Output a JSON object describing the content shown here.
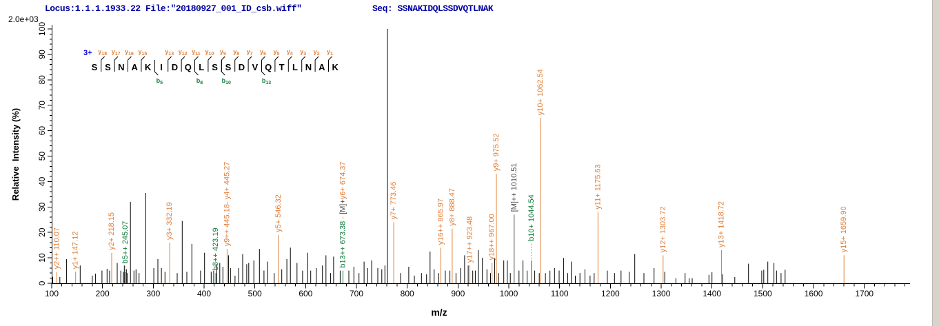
{
  "header": {
    "locus_file": "Locus:1.1.1.1933.22 File:\"20180927_001_ID_csb.wiff\"",
    "seq_label": "Seq: SSNAKIDQLSSDVQTLNAK",
    "intensity_scale": "2.0e+03"
  },
  "chart_data": {
    "type": "bar",
    "subtype": "centroided-ms2-peptide-fragmentation-spectrum",
    "title": "",
    "xlabel": "m/z",
    "ylabel": "Relative  Intensity (%)",
    "xlim": [
      100,
      1790
    ],
    "ylim": [
      0,
      100
    ],
    "x_major_tick_step": 100,
    "x_minor_tick_step": 20,
    "x_last_major_label": 1700,
    "y_major_tick_step": 10,
    "y_minor_tick_step": 2,
    "grid": "off",
    "legend": "none",
    "colors": {
      "y_ion": "#E0813C",
      "b_ion": "#117B3C",
      "precursor": "#4D4D4D",
      "peak": "#000000",
      "axis": "#000000",
      "charge": "#0000E0",
      "header_text": "#0000A0",
      "leader": "#9a9a9a"
    },
    "peptide": {
      "sequence": "SSNAKIDQLSSDVQTLNAK",
      "charge_label": "3+",
      "y_fragments": [
        [
          18,
          1
        ],
        [
          17,
          2
        ],
        [
          16,
          3
        ],
        [
          15,
          4
        ],
        [
          13,
          6
        ],
        [
          12,
          7
        ],
        [
          11,
          8
        ],
        [
          10,
          9
        ],
        [
          9,
          10
        ],
        [
          8,
          11
        ],
        [
          7,
          12
        ],
        [
          6,
          13
        ],
        [
          5,
          14
        ],
        [
          4,
          15
        ],
        [
          3,
          16
        ],
        [
          2,
          17
        ],
        [
          1,
          18
        ]
      ],
      "b_fragments": [
        [
          5,
          5
        ],
        [
          8,
          8
        ],
        [
          10,
          10
        ],
        [
          13,
          13
        ]
      ]
    },
    "labeled_peaks": [
      {
        "label": "y2++ 110.07",
        "mz": 110.07,
        "intensity": 4.5,
        "type": "y"
      },
      {
        "label": "y1+ 147.12",
        "mz": 147.12,
        "intensity": 4.5,
        "type": "y"
      },
      {
        "label": "y2+ 218.15",
        "mz": 218.15,
        "intensity": 12,
        "type": "y"
      },
      {
        "label": "b5++ 245.07",
        "mz": 245.07,
        "intensity": 4.5,
        "type": "b",
        "leader": 8
      },
      {
        "label": "y3+ 332.19",
        "mz": 332.19,
        "intensity": 16,
        "type": "y"
      },
      {
        "label": "b8++ 423.19",
        "mz": 423.19,
        "intensity": 4,
        "type": "b"
      },
      {
        "label": "y9++ 445.18- y4+ 445.27",
        "mz": 445.27,
        "intensity": 13.5,
        "type": "y"
      },
      {
        "label": "y5+ 546.32",
        "mz": 546.32,
        "intensity": 19,
        "type": "y"
      },
      {
        "label": "b13++ 673.38 - [M]+ y6+ 674.37",
        "mz": 673.38,
        "intensity": 5,
        "type": "b",
        "parts": [
          {
            "text": "b13++ 673.38",
            "type": "b"
          },
          {
            "text": " - ",
            "type": "y"
          },
          {
            "text": "[M]+",
            "type": "M"
          },
          {
            "text": "y6+ 674.37",
            "type": "y"
          }
        ]
      },
      {
        "label": "y7+ 773.46",
        "mz": 773.46,
        "intensity": 24,
        "type": "y"
      },
      {
        "label": "y16++ 865.97",
        "mz": 865.97,
        "intensity": 14,
        "type": "y"
      },
      {
        "label": "y8+ 888.47",
        "mz": 888.47,
        "intensity": 21.5,
        "type": "y"
      },
      {
        "label": "y17++ 923.48",
        "mz": 923.48,
        "intensity": 7,
        "type": "y"
      },
      {
        "label": "y18++ 967.00",
        "mz": 967.0,
        "intensity": 8,
        "type": "y"
      },
      {
        "label": "y9+ 975.52",
        "mz": 975.52,
        "intensity": 43,
        "type": "y"
      },
      {
        "label": "[M]++ 1010.51",
        "mz": 1010.51,
        "intensity": 27,
        "type": "M"
      },
      {
        "label": "b10+ 1044.54",
        "mz": 1044.54,
        "intensity": 9,
        "type": "b",
        "leader": 24
      },
      {
        "label": "y10+ 1062.54",
        "mz": 1062.54,
        "intensity": 65,
        "type": "y"
      },
      {
        "label": "y11+ 1175.63",
        "mz": 1175.63,
        "intensity": 28,
        "type": "y"
      },
      {
        "label": "y12+ 1303.72",
        "mz": 1303.72,
        "intensity": 11,
        "type": "y"
      },
      {
        "label": "y13+ 1418.72",
        "mz": 1418.72,
        "intensity": 13,
        "type": "y"
      },
      {
        "label": "y15+ 1659.90",
        "mz": 1659.9,
        "intensity": 11,
        "type": "y"
      }
    ],
    "unlabeled_peaks": [
      [
        102,
        2.5
      ],
      [
        116,
        2.5
      ],
      [
        129,
        9.5
      ],
      [
        156,
        7
      ],
      [
        180,
        3
      ],
      [
        186,
        3.8
      ],
      [
        199,
        5
      ],
      [
        209,
        5.7
      ],
      [
        214,
        5
      ],
      [
        229,
        8
      ],
      [
        236,
        5
      ],
      [
        241,
        4.5
      ],
      [
        243,
        7
      ],
      [
        247,
        5.5
      ],
      [
        249,
        4
      ],
      [
        255,
        32
      ],
      [
        262,
        5
      ],
      [
        266,
        5.5
      ],
      [
        272,
        4
      ],
      [
        285,
        35.5
      ],
      [
        301,
        6
      ],
      [
        309,
        9.5
      ],
      [
        316,
        6
      ],
      [
        323,
        4.5
      ],
      [
        347,
        4
      ],
      [
        357,
        24.5
      ],
      [
        366,
        4.5
      ],
      [
        376,
        15.5
      ],
      [
        393,
        5
      ],
      [
        401,
        12
      ],
      [
        414,
        4.5
      ],
      [
        419,
        5
      ],
      [
        425,
        7.5
      ],
      [
        431,
        8
      ],
      [
        437,
        6.5
      ],
      [
        448,
        11
      ],
      [
        452,
        6
      ],
      [
        461,
        3
      ],
      [
        468,
        6
      ],
      [
        476,
        11.5
      ],
      [
        484,
        7.5
      ],
      [
        488,
        8
      ],
      [
        498,
        9
      ],
      [
        509,
        13.5
      ],
      [
        518,
        5
      ],
      [
        525,
        8.5
      ],
      [
        538,
        4
      ],
      [
        553,
        5.5
      ],
      [
        563,
        9.5
      ],
      [
        570,
        14
      ],
      [
        583,
        8
      ],
      [
        594,
        5
      ],
      [
        604,
        12
      ],
      [
        610,
        5
      ],
      [
        621,
        6
      ],
      [
        633,
        7
      ],
      [
        640,
        11
      ],
      [
        649,
        4
      ],
      [
        655,
        10.5
      ],
      [
        668,
        5
      ],
      [
        685,
        5
      ],
      [
        695,
        6.5
      ],
      [
        705,
        4
      ],
      [
        715,
        8.5
      ],
      [
        722,
        6
      ],
      [
        730,
        9
      ],
      [
        742,
        6
      ],
      [
        750,
        5.5
      ],
      [
        756,
        7
      ],
      [
        761,
        100
      ],
      [
        787,
        4
      ],
      [
        803,
        6.5
      ],
      [
        814,
        3
      ],
      [
        828,
        4
      ],
      [
        838,
        3.5
      ],
      [
        845,
        12.5
      ],
      [
        853,
        5.5
      ],
      [
        862,
        4
      ],
      [
        875,
        5
      ],
      [
        884,
        5
      ],
      [
        896,
        4
      ],
      [
        905,
        6
      ],
      [
        913,
        11
      ],
      [
        920,
        7
      ],
      [
        929,
        5
      ],
      [
        934,
        5
      ],
      [
        940,
        13
      ],
      [
        948,
        10
      ],
      [
        957,
        5.5
      ],
      [
        964,
        4
      ],
      [
        972,
        10
      ],
      [
        980,
        4
      ],
      [
        990,
        9
      ],
      [
        997,
        9
      ],
      [
        1003,
        4
      ],
      [
        1020,
        5
      ],
      [
        1028,
        9
      ],
      [
        1036,
        5
      ],
      [
        1051,
        5
      ],
      [
        1060,
        4
      ],
      [
        1072,
        4
      ],
      [
        1081,
        5
      ],
      [
        1090,
        6
      ],
      [
        1099,
        5
      ],
      [
        1108,
        10
      ],
      [
        1116,
        4
      ],
      [
        1123,
        8.5
      ],
      [
        1131,
        3
      ],
      [
        1140,
        4
      ],
      [
        1150,
        5.5
      ],
      [
        1160,
        3
      ],
      [
        1168,
        4
      ],
      [
        1194,
        5
      ],
      [
        1208,
        4
      ],
      [
        1221,
        5
      ],
      [
        1237,
        4.5
      ],
      [
        1248,
        11.5
      ],
      [
        1266,
        4
      ],
      [
        1286,
        6
      ],
      [
        1307,
        4.5
      ],
      [
        1329,
        2
      ],
      [
        1347,
        4
      ],
      [
        1355,
        2
      ],
      [
        1361,
        2
      ],
      [
        1394,
        3.3
      ],
      [
        1400,
        4.3
      ],
      [
        1421,
        3.5
      ],
      [
        1445,
        2.5
      ],
      [
        1472,
        7.7
      ],
      [
        1498,
        5
      ],
      [
        1502,
        5.3
      ],
      [
        1510,
        8.5
      ],
      [
        1522,
        8
      ],
      [
        1527,
        5
      ],
      [
        1536,
        4
      ],
      [
        1544,
        5.3
      ]
    ]
  }
}
